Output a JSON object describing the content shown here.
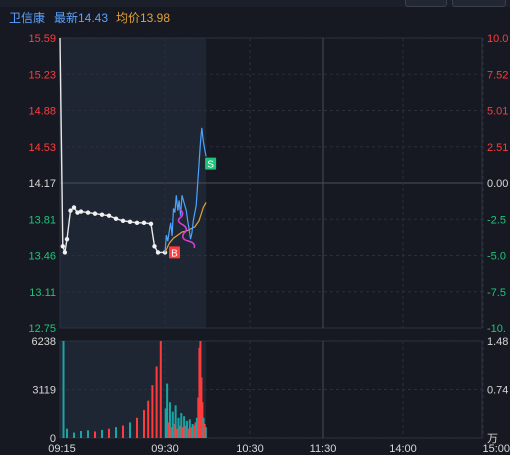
{
  "header": {
    "stock_name": "卫信康",
    "latest_label": "最新14.43",
    "avg_label": "均价13.98"
  },
  "colors": {
    "up": "#ff3b3b",
    "down": "#1ec47a",
    "flat": "#d8d8d8",
    "price_line": "#4aa3ff",
    "avg_line": "#e2a23a",
    "volume_teal": "#1aa5a5",
    "grid": "#2a2f3b"
  },
  "chart_data": {
    "type": "line",
    "price_axis": {
      "left_labels": [
        "15.59",
        "15.23",
        "14.88",
        "14.53",
        "14.17",
        "13.81",
        "13.46",
        "13.11",
        "12.75"
      ],
      "right_labels": [
        "10.0",
        "7.52",
        "5.01",
        "2.51",
        "0.00",
        "-2.5",
        "-5.0",
        "-7.5",
        "-10."
      ],
      "ylim": [
        12.75,
        15.59
      ],
      "prev_close": 14.17
    },
    "volume_axis": {
      "left_labels": [
        "6238",
        "3119",
        "0"
      ],
      "right_labels": [
        "1.48",
        "0.74",
        "万"
      ],
      "ylim": [
        0,
        6238
      ]
    },
    "time_labels": [
      "09:15",
      "09:30",
      "10:30",
      "11:30",
      "14:00",
      "15:00"
    ],
    "auction_price": {
      "x_minutes": [
        0,
        0.4,
        0.7,
        1.0,
        1.5,
        2,
        2.5,
        3,
        4,
        5,
        6,
        7,
        8,
        9,
        10,
        11,
        12,
        13,
        13.5,
        14,
        15
      ],
      "y": [
        15.59,
        13.55,
        13.49,
        13.62,
        13.9,
        13.93,
        13.88,
        13.89,
        13.88,
        13.87,
        13.86,
        13.85,
        13.82,
        13.8,
        13.79,
        13.78,
        13.78,
        13.77,
        13.55,
        13.49,
        13.49
      ]
    },
    "price_series": {
      "name": "最新",
      "x_minutes": [
        15,
        16,
        17,
        18,
        19,
        20,
        21,
        22,
        23,
        24,
        25,
        26,
        27,
        28,
        29,
        30,
        31,
        32,
        33,
        34,
        35,
        36,
        37,
        38,
        39,
        40,
        41,
        42,
        43,
        44
      ],
      "y": [
        13.49,
        13.66,
        13.6,
        13.7,
        13.78,
        13.65,
        13.92,
        13.88,
        14.05,
        13.9,
        14.0,
        13.85,
        14.05,
        14.0,
        13.95,
        13.9,
        13.8,
        13.72,
        13.62,
        13.68,
        13.8,
        13.88,
        13.95,
        14.15,
        14.35,
        14.56,
        14.71,
        14.58,
        14.5,
        14.43
      ]
    },
    "avg_series": {
      "name": "均价",
      "x_minutes": [
        15,
        18,
        21,
        24,
        27,
        30,
        33,
        36,
        39,
        42,
        44
      ],
      "y": [
        13.49,
        13.58,
        13.63,
        13.66,
        13.69,
        13.7,
        13.72,
        13.74,
        13.8,
        13.93,
        13.98
      ]
    },
    "trade_markers": [
      {
        "label": "B",
        "x_minutes": 15,
        "y": 13.49,
        "color": "#ff3b3b"
      },
      {
        "label": "S",
        "x_minutes": 40.5,
        "y": 14.36,
        "color": "#1ec47a"
      }
    ],
    "volume_bars": [
      {
        "x_minutes": 0.5,
        "v": 6238,
        "c": "teal"
      },
      {
        "x_minutes": 1,
        "v": 600,
        "c": "teal"
      },
      {
        "x_minutes": 2,
        "v": 350,
        "c": "teal"
      },
      {
        "x_minutes": 3,
        "v": 450,
        "c": "teal"
      },
      {
        "x_minutes": 4,
        "v": 500,
        "c": "teal"
      },
      {
        "x_minutes": 5,
        "v": 420,
        "c": "red"
      },
      {
        "x_minutes": 6,
        "v": 520,
        "c": "teal"
      },
      {
        "x_minutes": 7,
        "v": 600,
        "c": "red"
      },
      {
        "x_minutes": 8,
        "v": 700,
        "c": "teal"
      },
      {
        "x_minutes": 9,
        "v": 800,
        "c": "red"
      },
      {
        "x_minutes": 10,
        "v": 1000,
        "c": "teal"
      },
      {
        "x_minutes": 11,
        "v": 1300,
        "c": "red"
      },
      {
        "x_minutes": 12,
        "v": 1800,
        "c": "red"
      },
      {
        "x_minutes": 12.6,
        "v": 2400,
        "c": "red"
      },
      {
        "x_minutes": 13.2,
        "v": 3400,
        "c": "red"
      },
      {
        "x_minutes": 13.8,
        "v": 4600,
        "c": "red"
      },
      {
        "x_minutes": 14.4,
        "v": 6238,
        "c": "red"
      },
      {
        "x_minutes": 15.5,
        "v": 1900,
        "c": "teal"
      },
      {
        "x_minutes": 16.5,
        "v": 3500,
        "c": "teal"
      },
      {
        "x_minutes": 17.5,
        "v": 1000,
        "c": "red"
      },
      {
        "x_minutes": 18.5,
        "v": 2300,
        "c": "teal"
      },
      {
        "x_minutes": 19.5,
        "v": 700,
        "c": "red"
      },
      {
        "x_minutes": 20.5,
        "v": 1700,
        "c": "teal"
      },
      {
        "x_minutes": 21.5,
        "v": 900,
        "c": "red"
      },
      {
        "x_minutes": 22.5,
        "v": 2100,
        "c": "teal"
      },
      {
        "x_minutes": 23.5,
        "v": 600,
        "c": "red"
      },
      {
        "x_minutes": 24.5,
        "v": 1300,
        "c": "teal"
      },
      {
        "x_minutes": 25.5,
        "v": 800,
        "c": "red"
      },
      {
        "x_minutes": 26.5,
        "v": 1600,
        "c": "teal"
      },
      {
        "x_minutes": 27.5,
        "v": 700,
        "c": "red"
      },
      {
        "x_minutes": 28.5,
        "v": 1400,
        "c": "teal"
      },
      {
        "x_minutes": 29.5,
        "v": 800,
        "c": "red"
      },
      {
        "x_minutes": 30.5,
        "v": 1100,
        "c": "teal"
      },
      {
        "x_minutes": 31.5,
        "v": 600,
        "c": "red"
      },
      {
        "x_minutes": 32.5,
        "v": 1200,
        "c": "teal"
      },
      {
        "x_minutes": 33.5,
        "v": 700,
        "c": "red"
      },
      {
        "x_minutes": 34.5,
        "v": 900,
        "c": "teal"
      },
      {
        "x_minutes": 35.5,
        "v": 800,
        "c": "red"
      },
      {
        "x_minutes": 36.5,
        "v": 1000,
        "c": "red"
      },
      {
        "x_minutes": 37.5,
        "v": 1300,
        "c": "teal"
      },
      {
        "x_minutes": 38.5,
        "v": 2600,
        "c": "red"
      },
      {
        "x_minutes": 39.3,
        "v": 5800,
        "c": "red"
      },
      {
        "x_minutes": 40,
        "v": 6238,
        "c": "red"
      },
      {
        "x_minutes": 40.7,
        "v": 3900,
        "c": "red"
      },
      {
        "x_minutes": 41.4,
        "v": 2300,
        "c": "red"
      },
      {
        "x_minutes": 42.2,
        "v": 1300,
        "c": "teal"
      },
      {
        "x_minutes": 43,
        "v": 900,
        "c": "red"
      },
      {
        "x_minutes": 43.8,
        "v": 700,
        "c": "teal"
      }
    ],
    "grid": true
  }
}
